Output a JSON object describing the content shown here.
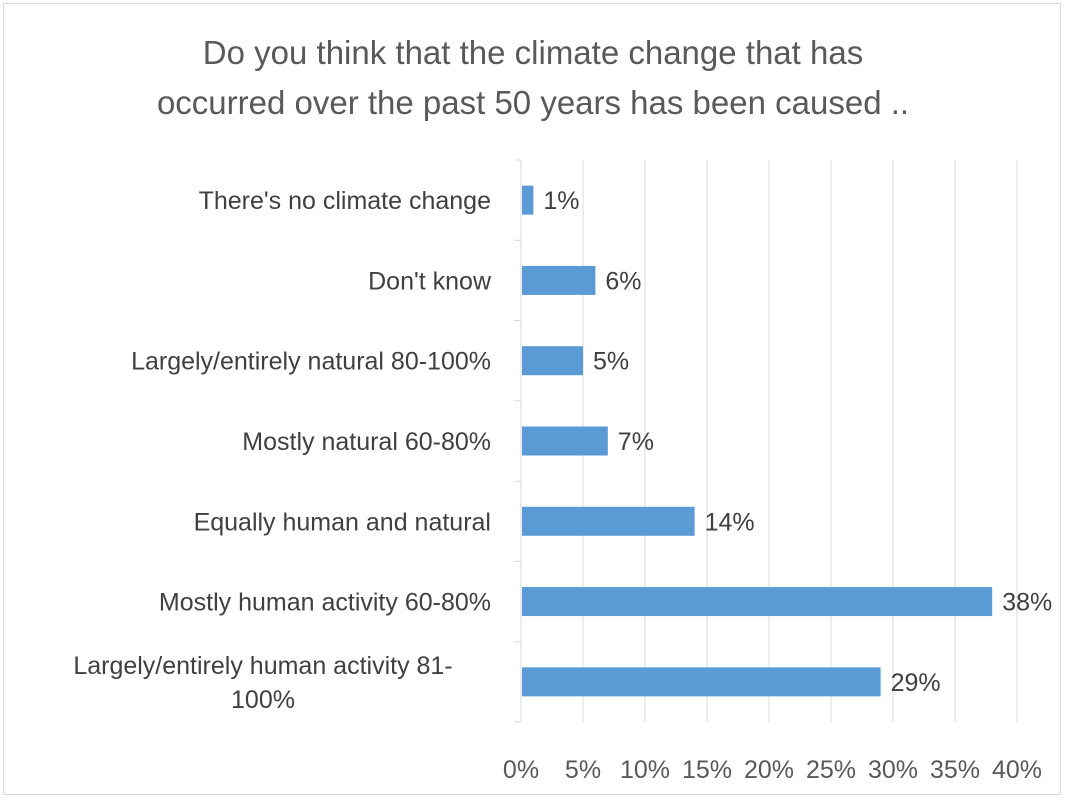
{
  "chart_data": {
    "type": "bar",
    "orientation": "horizontal",
    "title_lines": [
      "Do you think that the climate change that has",
      "occurred over the past 50 years has been caused .."
    ],
    "categories": [
      [
        "There's no climate change"
      ],
      [
        "Don't know"
      ],
      [
        "Largely/entirely natural 80-100%"
      ],
      [
        "Mostly natural 60-80%"
      ],
      [
        "Equally human and natural"
      ],
      [
        "Mostly human activity 60-80%"
      ],
      [
        "Largely/entirely human activity 81-",
        "100%"
      ]
    ],
    "values": [
      1,
      6,
      5,
      7,
      14,
      38,
      29
    ],
    "data_labels": [
      "1%",
      "6%",
      "5%",
      "7%",
      "14%",
      "38%",
      "29%"
    ],
    "x_ticks": [
      "0%",
      "5%",
      "10%",
      "15%",
      "20%",
      "25%",
      "30%",
      "35%",
      "40%"
    ],
    "xlim": [
      0,
      40
    ],
    "grid": true,
    "bar_color": "#5b9bd5",
    "gridline_color": "#d9d9d9"
  }
}
